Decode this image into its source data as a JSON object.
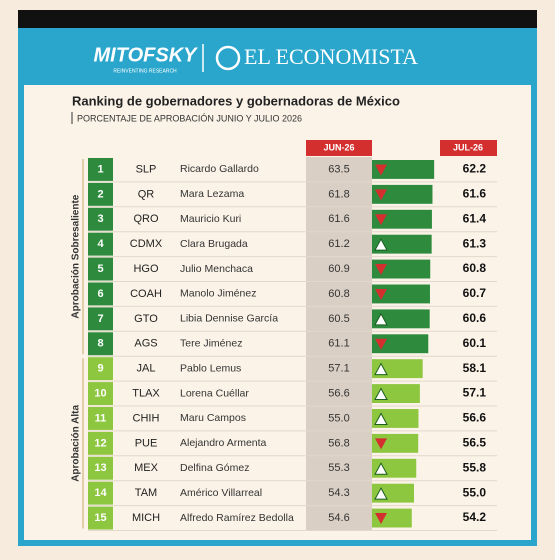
{
  "header": {
    "logo_left": "MITOFSKY",
    "logo_left_tagline": "REINVENTING RESEARCH",
    "logo_right": "EL ECONOMISTA"
  },
  "title": "Ranking de gobernadores y gobernadoras de México",
  "subtitle": "PORCENTAJE DE APROBACIÓN JUNIO Y JULIO 2026",
  "table": {
    "columns": [
      "JUN-26",
      "JUL-26"
    ],
    "groups": [
      {
        "label": "Aprobación Sobresaliente",
        "color": "#2e8b3e",
        "rows": [
          {
            "rank": 1,
            "state": "SLP",
            "name": "Ricardo Gallardo",
            "jun": 63.5,
            "jul": 62.2
          },
          {
            "rank": 2,
            "state": "QR",
            "name": "Mara Lezama",
            "jun": 61.8,
            "jul": 61.6
          },
          {
            "rank": 3,
            "state": "QRO",
            "name": "Mauricio Kuri",
            "jun": 61.6,
            "jul": 61.4
          },
          {
            "rank": 4,
            "state": "CDMX",
            "name": "Clara Brugada",
            "jun": 61.2,
            "jul": 61.3
          },
          {
            "rank": 5,
            "state": "HGO",
            "name": "Julio Menchaca",
            "jun": 60.9,
            "jul": 60.8
          },
          {
            "rank": 6,
            "state": "COAH",
            "name": "Manolo Jiménez",
            "jun": 60.8,
            "jul": 60.7
          },
          {
            "rank": 7,
            "state": "GTO",
            "name": "Libia Dennise García",
            "jun": 60.5,
            "jul": 60.6
          },
          {
            "rank": 8,
            "state": "AGS",
            "name": "Tere Jiménez",
            "jun": 61.1,
            "jul": 60.1
          }
        ]
      },
      {
        "label": "Aprobación Alta",
        "color": "#8dc63f",
        "rows": [
          {
            "rank": 9,
            "state": "JAL",
            "name": "Pablo Lemus",
            "jun": 57.1,
            "jul": 58.1
          },
          {
            "rank": 10,
            "state": "TLAX",
            "name": "Lorena Cuéllar",
            "jun": 56.6,
            "jul": 57.1
          },
          {
            "rank": 11,
            "state": "CHIH",
            "name": "Maru Campos",
            "jun": 55,
            "jun_label": "55.0",
            "jul": 56.6
          },
          {
            "rank": 12,
            "state": "PUE",
            "name": "Alejandro Armenta",
            "jun": 56.8,
            "jul": 56.5
          },
          {
            "rank": 13,
            "state": "MEX",
            "name": "Delfina Gómez",
            "jun": 55.3,
            "jul": 55.8
          },
          {
            "rank": 14,
            "state": "TAM",
            "name": "Américo Villarreal",
            "jun": 54.3,
            "jul": 55,
            "jul_label": "55.0"
          },
          {
            "rank": 15,
            "state": "MICH",
            "name": "Alfredo Ramírez Bedolla",
            "jun": 54.6,
            "jul": 54.2
          }
        ]
      }
    ]
  }
}
